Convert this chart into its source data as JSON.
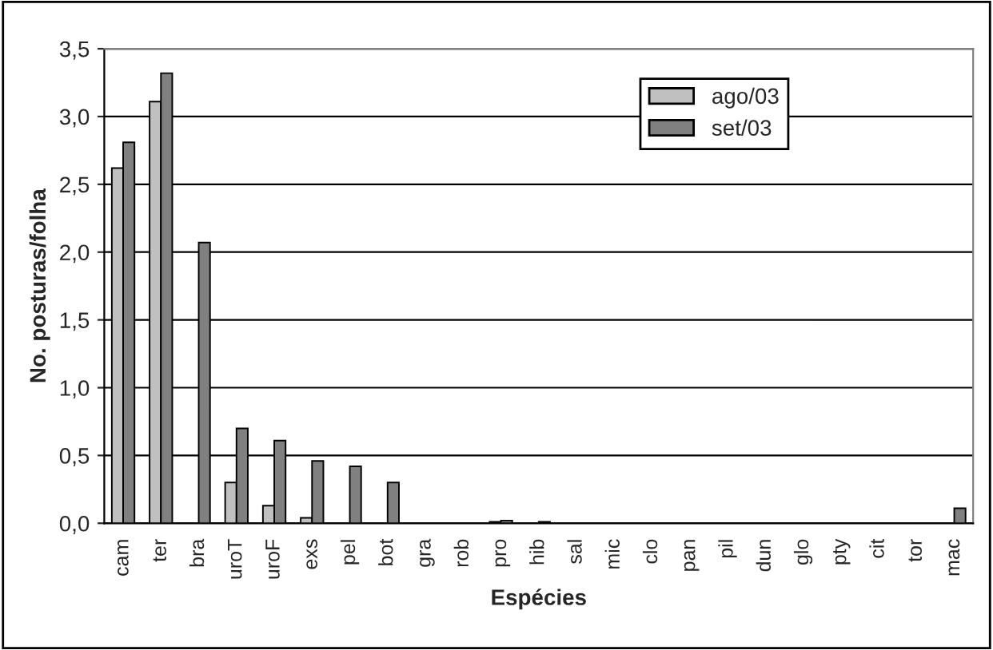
{
  "chart_data": {
    "type": "bar",
    "xlabel": "Espécies",
    "ylabel": "No. posturas/folha",
    "categories": [
      "cam",
      "ter",
      "bra",
      "uroT",
      "uroF",
      "exs",
      "pel",
      "bot",
      "gra",
      "rob",
      "pro",
      "hib",
      "sal",
      "mic",
      "clo",
      "pan",
      "pil",
      "dun",
      "glo",
      "pty",
      "cit",
      "tor",
      "mac"
    ],
    "series": [
      {
        "name": "ago/03",
        "color": "#c0c0c0",
        "values": [
          2.62,
          3.11,
          0,
          0.3,
          0.13,
          0.04,
          0,
          0,
          0,
          0,
          0.01,
          0,
          0,
          0,
          0,
          0,
          0,
          0,
          0,
          0,
          0,
          0,
          0
        ]
      },
      {
        "name": "set/03",
        "color": "#808080",
        "values": [
          2.81,
          3.32,
          2.07,
          0.7,
          0.61,
          0.46,
          0.42,
          0.3,
          0,
          0,
          0.02,
          0.01,
          0,
          0,
          0,
          0,
          0,
          0,
          0,
          0,
          0,
          0,
          0.11
        ]
      }
    ],
    "ylim": [
      0,
      3.5
    ],
    "yticks": [
      {
        "value": 0,
        "label": "0,0"
      },
      {
        "value": 0.5,
        "label": "0,5"
      },
      {
        "value": 1,
        "label": "1,0"
      },
      {
        "value": 1.5,
        "label": "1,5"
      },
      {
        "value": 2,
        "label": "2,0"
      },
      {
        "value": 2.5,
        "label": "2,5"
      },
      {
        "value": 3,
        "label": "3,0"
      },
      {
        "value": 3.5,
        "label": "3,5"
      }
    ],
    "grid": "y",
    "legend": "top right"
  }
}
